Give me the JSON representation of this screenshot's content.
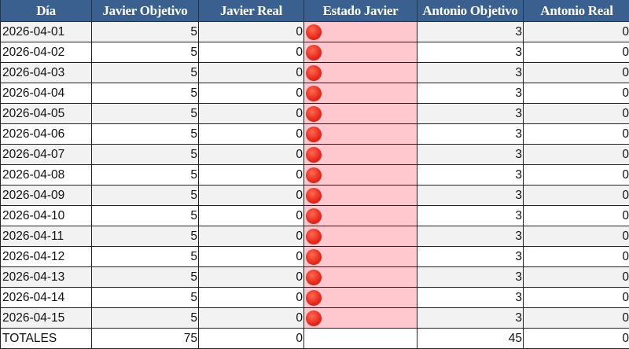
{
  "headers": [
    "Día",
    "Javier Objetivo",
    "Javier Real",
    "Estado Javier",
    "Antonio Objetivo",
    "Antonio Real"
  ],
  "status_icon": "red-circle-icon",
  "colors": {
    "header_bg": "#3a6090",
    "status_bg": "#ffc7ce",
    "status_dot": "#e5281c",
    "row_alt": "#f2f2f2"
  },
  "rows": [
    {
      "dia": "2026-04-01",
      "javier_obj": "5",
      "javier_real": "0",
      "antonio_obj": "3",
      "antonio_real": "0"
    },
    {
      "dia": "2026-04-02",
      "javier_obj": "5",
      "javier_real": "0",
      "antonio_obj": "3",
      "antonio_real": "0"
    },
    {
      "dia": "2026-04-03",
      "javier_obj": "5",
      "javier_real": "0",
      "antonio_obj": "3",
      "antonio_real": "0"
    },
    {
      "dia": "2026-04-04",
      "javier_obj": "5",
      "javier_real": "0",
      "antonio_obj": "3",
      "antonio_real": "0"
    },
    {
      "dia": "2026-04-05",
      "javier_obj": "5",
      "javier_real": "0",
      "antonio_obj": "3",
      "antonio_real": "0"
    },
    {
      "dia": "2026-04-06",
      "javier_obj": "5",
      "javier_real": "0",
      "antonio_obj": "3",
      "antonio_real": "0"
    },
    {
      "dia": "2026-04-07",
      "javier_obj": "5",
      "javier_real": "0",
      "antonio_obj": "3",
      "antonio_real": "0"
    },
    {
      "dia": "2026-04-08",
      "javier_obj": "5",
      "javier_real": "0",
      "antonio_obj": "3",
      "antonio_real": "0"
    },
    {
      "dia": "2026-04-09",
      "javier_obj": "5",
      "javier_real": "0",
      "antonio_obj": "3",
      "antonio_real": "0"
    },
    {
      "dia": "2026-04-10",
      "javier_obj": "5",
      "javier_real": "0",
      "antonio_obj": "3",
      "antonio_real": "0"
    },
    {
      "dia": "2026-04-11",
      "javier_obj": "5",
      "javier_real": "0",
      "antonio_obj": "3",
      "antonio_real": "0"
    },
    {
      "dia": "2026-04-12",
      "javier_obj": "5",
      "javier_real": "0",
      "antonio_obj": "3",
      "antonio_real": "0"
    },
    {
      "dia": "2026-04-13",
      "javier_obj": "5",
      "javier_real": "0",
      "antonio_obj": "3",
      "antonio_real": "0"
    },
    {
      "dia": "2026-04-14",
      "javier_obj": "5",
      "javier_real": "0",
      "antonio_obj": "3",
      "antonio_real": "0"
    },
    {
      "dia": "2026-04-15",
      "javier_obj": "5",
      "javier_real": "0",
      "antonio_obj": "3",
      "antonio_real": "0"
    }
  ],
  "totals": {
    "label": "TOTALES",
    "javier_obj": "75",
    "javier_real": "0",
    "antonio_obj": "45",
    "antonio_real": "0"
  }
}
